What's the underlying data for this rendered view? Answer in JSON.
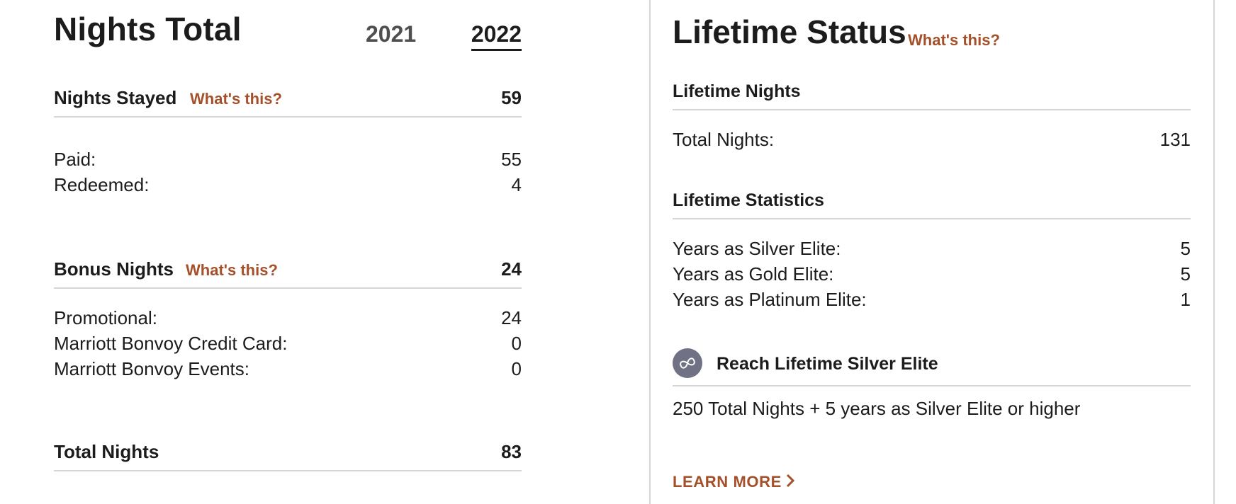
{
  "nights_total": {
    "title": "Nights Total",
    "year_tabs": [
      {
        "label": "2021",
        "selected": false
      },
      {
        "label": "2022",
        "selected": true
      }
    ],
    "nights_stayed": {
      "label": "Nights Stayed",
      "whats_this": "What's this?",
      "value": "59",
      "rows": [
        {
          "label": "Paid:",
          "value": "55"
        },
        {
          "label": "Redeemed:",
          "value": "4"
        }
      ]
    },
    "bonus_nights": {
      "label": "Bonus Nights",
      "whats_this": "What's this?",
      "value": "24",
      "rows": [
        {
          "label": "Promotional:",
          "value": "24"
        },
        {
          "label": "Marriott Bonvoy Credit Card:",
          "value": "0"
        },
        {
          "label": "Marriott Bonvoy Events:",
          "value": "0"
        }
      ]
    },
    "total_nights": {
      "label": "Total Nights",
      "value": "83"
    }
  },
  "lifetime_status": {
    "title": "Lifetime Status",
    "whats_this": "What's this?",
    "lifetime_nights": {
      "label": "Lifetime Nights",
      "rows": [
        {
          "label": "Total Nights:",
          "value": "131"
        }
      ]
    },
    "lifetime_statistics": {
      "label": "Lifetime Statistics",
      "rows": [
        {
          "label": "Years as Silver Elite:",
          "value": "5"
        },
        {
          "label": "Years as Gold Elite:",
          "value": "5"
        },
        {
          "label": "Years as Platinum Elite:",
          "value": "1"
        }
      ]
    },
    "goal": {
      "icon": "infinity-icon",
      "label": "Reach Lifetime Silver Elite",
      "description": "250 Total Nights + 5 years as Silver Elite or higher"
    },
    "learn_more": "LEARN MORE"
  },
  "colors": {
    "accent": "#a4502a",
    "text": "#1c1c1c",
    "muted_tab": "#4f4f4f",
    "divider": "#d6d6d6",
    "icon_bg": "#707184"
  }
}
